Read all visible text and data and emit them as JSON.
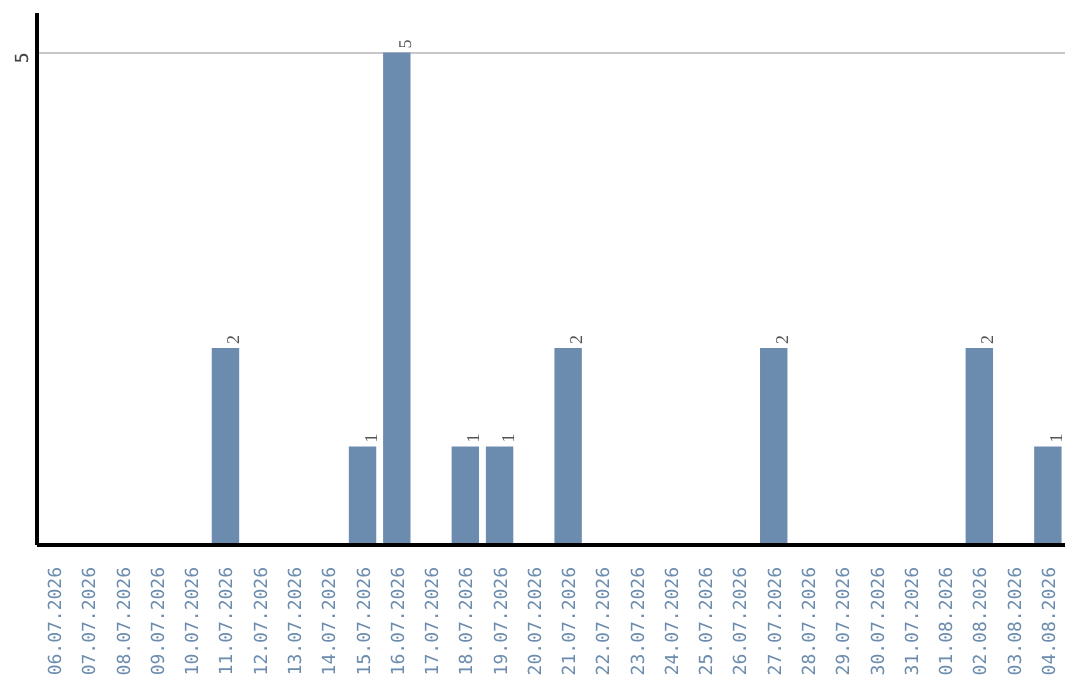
{
  "chart_data": {
    "type": "bar",
    "categories": [
      "06.07.2026",
      "07.07.2026",
      "08.07.2026",
      "09.07.2026",
      "10.07.2026",
      "11.07.2026",
      "12.07.2026",
      "13.07.2026",
      "14.07.2026",
      "15.07.2026",
      "16.07.2026",
      "17.07.2026",
      "18.07.2026",
      "19.07.2026",
      "20.07.2026",
      "21.07.2026",
      "22.07.2026",
      "23.07.2026",
      "24.07.2026",
      "25.07.2026",
      "26.07.2026",
      "27.07.2026",
      "28.07.2026",
      "29.07.2026",
      "30.07.2026",
      "31.07.2026",
      "01.08.2026",
      "02.08.2026",
      "03.08.2026",
      "04.08.2026"
    ],
    "values": [
      0,
      0,
      0,
      0,
      0,
      2,
      0,
      0,
      0,
      1,
      5,
      0,
      1,
      1,
      0,
      2,
      0,
      0,
      0,
      0,
      0,
      2,
      0,
      0,
      0,
      0,
      0,
      2,
      0,
      1
    ],
    "value_labels": [
      null,
      null,
      null,
      null,
      null,
      "2",
      null,
      null,
      null,
      "1",
      "5",
      null,
      "1",
      "1",
      null,
      "2",
      null,
      null,
      null,
      null,
      null,
      "2",
      null,
      null,
      null,
      null,
      null,
      "2",
      null,
      "1"
    ],
    "color": "#6b8cae",
    "ylim": [
      0,
      5.4
    ],
    "yticks": [
      5
    ],
    "grid": "y"
  }
}
